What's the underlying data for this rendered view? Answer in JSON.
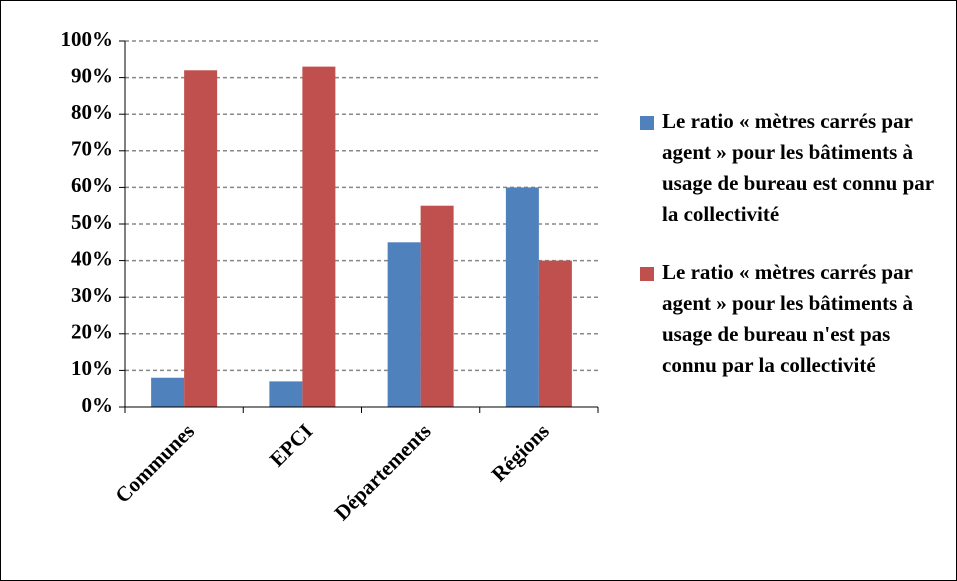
{
  "chart_data": {
    "type": "bar",
    "categories": [
      "Communes",
      "EPCI",
      "Départements",
      "Régions"
    ],
    "series": [
      {
        "name": "Le ratio « mètres carrés par agent » pour les bâtiments à usage de bureau est connu par la collectivité",
        "color": "#4f81bd",
        "values": [
          8,
          7,
          45,
          60
        ]
      },
      {
        "name": "Le ratio « mètres carrés par agent » pour les bâtiments à usage de bureau n'est pas connu par la collectivité",
        "color": "#c0504d",
        "values": [
          92,
          93,
          55,
          40
        ]
      }
    ],
    "ylim": [
      0,
      100
    ],
    "yticks": [
      {
        "value": 0,
        "label": "0%"
      },
      {
        "value": 10,
        "label": "10%"
      },
      {
        "value": 20,
        "label": "20%"
      },
      {
        "value": 30,
        "label": "30%"
      },
      {
        "value": 40,
        "label": "40%"
      },
      {
        "value": 50,
        "label": "50%"
      },
      {
        "value": 60,
        "label": "60%"
      },
      {
        "value": 70,
        "label": "70%"
      },
      {
        "value": 80,
        "label": "80%"
      },
      {
        "value": 90,
        "label": "90%"
      },
      {
        "value": 100,
        "label": "100%"
      }
    ],
    "grid": true,
    "legend": "right"
  }
}
